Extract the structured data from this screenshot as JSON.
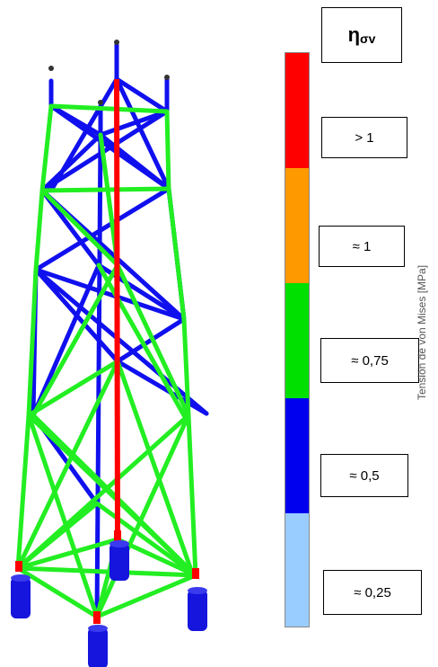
{
  "legend": {
    "title_main": "η",
    "title_sub": "σv",
    "axis_label": "Tensión de von Mises [MPa]",
    "levels": [
      {
        "label": "> 1",
        "color": "#ff0000"
      },
      {
        "label": "≈ 1",
        "color": "#ff9900"
      },
      {
        "label": "≈ 0,75",
        "color": "#00e000"
      },
      {
        "label": "≈ 0,5",
        "color": "#0000ee"
      },
      {
        "label": "≈ 0,25",
        "color": "#99ccff"
      }
    ]
  },
  "tower": {
    "brace_color_blue": "#1010ee",
    "brace_color_green": "#22ee22",
    "leg_color_red": "#ff0000",
    "foundation_color": "#1515dd"
  }
}
